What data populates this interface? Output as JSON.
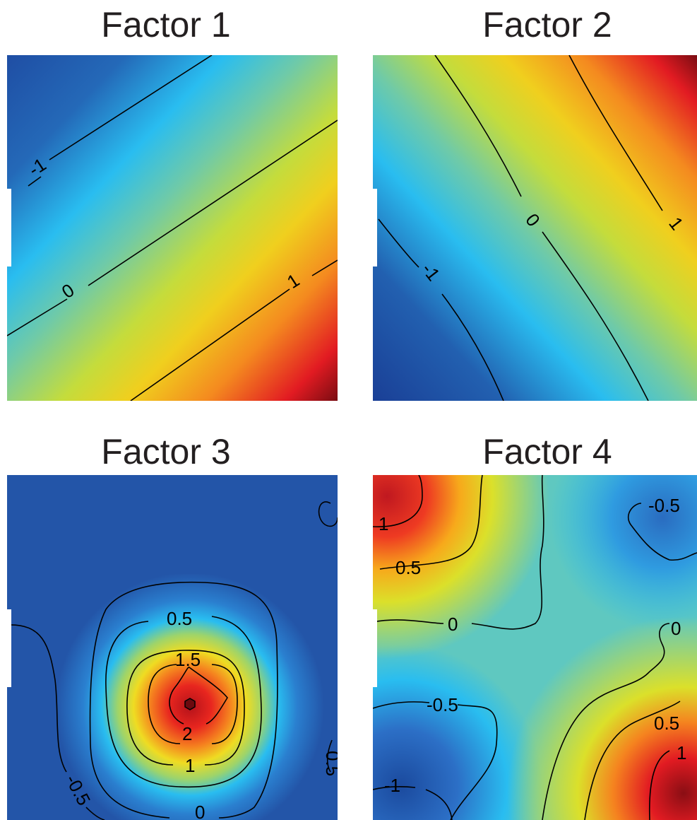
{
  "colors": {
    "colormap": [
      "#00008f",
      "#1f4ea4",
      "#2b8fd6",
      "#29bdf0",
      "#5fc8c0",
      "#9ed46a",
      "#e6e52a",
      "#f7a91b",
      "#f05a22",
      "#e21b22",
      "#6b0a0f"
    ],
    "contour": "#000000",
    "title": "#231f20"
  },
  "chart_data": [
    {
      "type": "heatmap",
      "title": "Factor 1",
      "contour_levels": [
        "-1",
        "0",
        "1"
      ],
      "grid": false
    },
    {
      "type": "heatmap",
      "title": "Factor 2",
      "contour_levels": [
        "-1",
        "0",
        "1"
      ],
      "grid": false
    },
    {
      "type": "heatmap",
      "title": "Factor 3",
      "contour_levels": [
        "-0.5",
        "0",
        "0.5",
        "1",
        "1.5",
        "2",
        "0.5"
      ],
      "grid": false
    },
    {
      "type": "heatmap",
      "title": "Factor 4",
      "contour_levels": [
        "1",
        "0.5",
        "0",
        "-0.5",
        "-1",
        "-0.5",
        "0",
        "0.5",
        "1"
      ],
      "grid": false
    }
  ]
}
